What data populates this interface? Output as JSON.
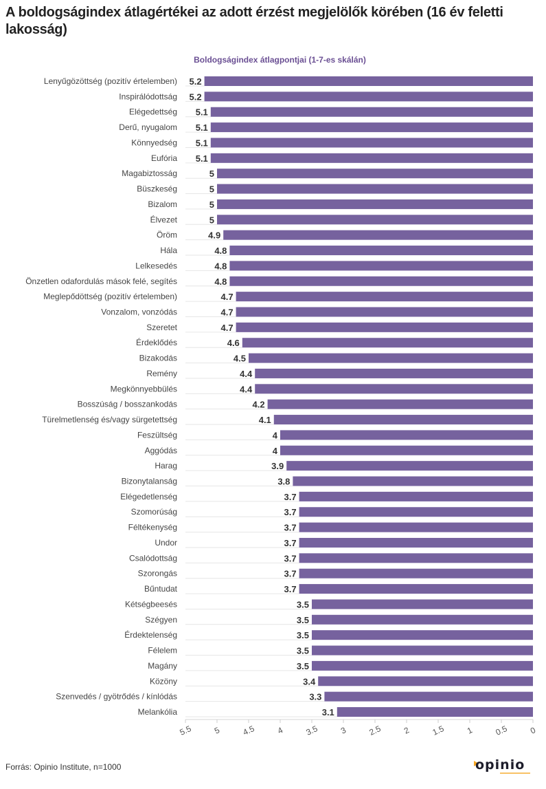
{
  "title": "A boldogságindex átlagértékei az adott érzést megjelölők körében (16 év feletti lakosság)",
  "source": "Forrás: Opinio Institute, n=1000",
  "logo_text": "opinio",
  "colors": {
    "bar": "#76629e",
    "subtitle": "#6a4f93",
    "logo_accent": "#f5a623",
    "logo_text": "#1d1d2b"
  },
  "chart_data": {
    "type": "bar",
    "orientation": "horizontal",
    "x_reversed": true,
    "title": "Boldogságindex átlagpontjai (1-7-es skálán)",
    "xlim": [
      0,
      5.5
    ],
    "x_ticks": [
      "0",
      "0.5",
      "1",
      "1.5",
      "2",
      "2.5",
      "3",
      "3.5",
      "4",
      "4.5",
      "5",
      "5.5"
    ],
    "grid": true,
    "categories": [
      "Lenyűgözöttség (pozitív értelemben)",
      "Inspirálódottság",
      "Elégedettség",
      "Derű, nyugalom",
      "Könnyedség",
      "Eufória",
      "Magabiztosság",
      "Büszkeség",
      "Bizalom",
      "Élvezet",
      "Öröm",
      "Hála",
      "Lelkesedés",
      "Önzetlen odafordulás mások felé, segítés",
      "Meglepődöttség (pozitív értelemben)",
      "Vonzalom, vonzódás",
      "Szeretet",
      "Érdeklődés",
      "Bizakodás",
      "Remény",
      "Megkönnyebbülés",
      "Bosszúság / bosszankodás",
      "Türelmetlenség és/vagy sürgetettség",
      "Feszültség",
      "Aggódás",
      "Harag",
      "Bizonytalanság",
      "Elégedetlenség",
      "Szomorúság",
      "Féltékenység",
      "Undor",
      "Csalódottság",
      "Szorongás",
      "Bűntudat",
      "Kétségbeesés",
      "Szégyen",
      "Érdektelenség",
      "Félelem",
      "Magány",
      "Közöny",
      "Szenvedés / gyötrődés / kínlódás",
      "Melankólia"
    ],
    "values": [
      5.2,
      5.2,
      5.1,
      5.1,
      5.1,
      5.1,
      5,
      5,
      5,
      5,
      4.9,
      4.8,
      4.8,
      4.8,
      4.7,
      4.7,
      4.7,
      4.6,
      4.5,
      4.4,
      4.4,
      4.2,
      4.1,
      4,
      4,
      3.9,
      3.8,
      3.7,
      3.7,
      3.7,
      3.7,
      3.7,
      3.7,
      3.7,
      3.5,
      3.5,
      3.5,
      3.5,
      3.5,
      3.4,
      3.3,
      3.1
    ]
  }
}
